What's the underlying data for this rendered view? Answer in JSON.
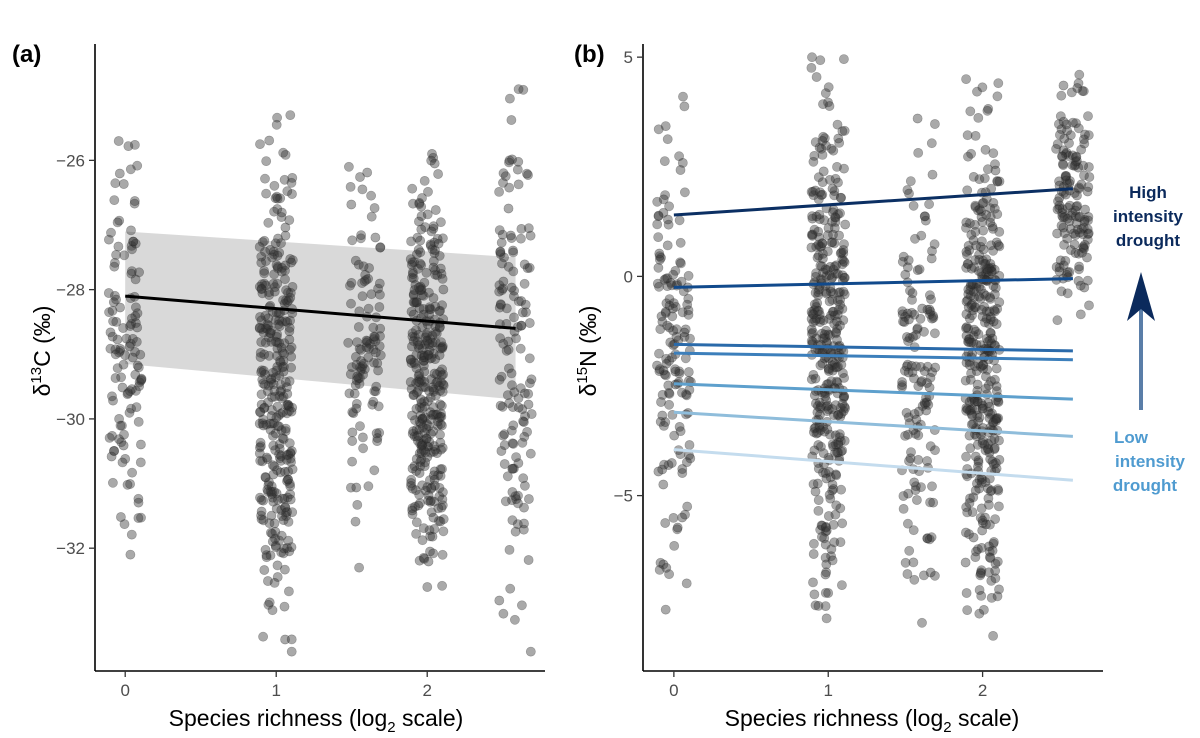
{
  "chart_data": [
    {
      "type": "scatter",
      "panel_label": "(a)",
      "xlabel_main": "Species richness (log",
      "xlabel_sub": "2",
      "xlabel_end": " scale)",
      "ylabel_delta": "δ",
      "ylabel_sup": "13",
      "ylabel_rest": "C (‰)",
      "xlim": [
        -0.2,
        2.78
      ],
      "ylim": [
        -33.9,
        -24.2
      ],
      "xticks": [
        0,
        1,
        2
      ],
      "xtick_labels": [
        "0",
        "1",
        "2"
      ],
      "yticks": [
        -32,
        -30,
        -28,
        -26
      ],
      "ytick_labels": [
        "−32",
        "−30",
        "−28",
        "−26"
      ],
      "grid": false,
      "clusters": [
        {
          "x": 0,
          "n": 120,
          "ymin": -32.1,
          "ymax": -25.7
        },
        {
          "x": 1,
          "n": 330,
          "ymin": -33.6,
          "ymax": -25.3
        },
        {
          "x": 1.585,
          "n": 110,
          "ymin": -32.3,
          "ymax": -26.1
        },
        {
          "x": 2,
          "n": 340,
          "ymin": -32.6,
          "ymax": -25.9
        },
        {
          "x": 2.585,
          "n": 140,
          "ymin": -33.6,
          "ymax": -24.9
        }
      ],
      "regression": {
        "x": [
          0,
          2.585
        ],
        "y": [
          -28.1,
          -28.6
        ],
        "color": "#000000"
      },
      "ribbon": {
        "x": [
          0,
          2.585
        ],
        "lower": [
          -29.15,
          -29.7
        ],
        "upper": [
          -27.1,
          -27.5
        ],
        "color": "#d9d9d9"
      }
    },
    {
      "type": "scatter",
      "panel_label": "(b)",
      "xlabel_main": "Species richness (log",
      "xlabel_sub": "2",
      "xlabel_end": " scale)",
      "ylabel_delta": "δ",
      "ylabel_sup": "15",
      "ylabel_rest": "N (‰)",
      "xlim": [
        -0.2,
        2.78
      ],
      "ylim": [
        -9.0,
        5.3
      ],
      "xticks": [
        0,
        1,
        2
      ],
      "xtick_labels": [
        "0",
        "1",
        "2"
      ],
      "yticks": [
        -5,
        0,
        5
      ],
      "ytick_labels": [
        "−5",
        "0",
        "5"
      ],
      "grid": false,
      "clusters": [
        {
          "x": 0,
          "n": 150,
          "ymin": -7.6,
          "ymax": 4.1
        },
        {
          "x": 1,
          "n": 380,
          "ymin": -7.8,
          "ymax": 5.0
        },
        {
          "x": 1.585,
          "n": 140,
          "ymin": -7.9,
          "ymax": 3.6
        },
        {
          "x": 2,
          "n": 380,
          "ymin": -8.2,
          "ymax": 4.5
        },
        {
          "x": 2.585,
          "n": 150,
          "ymin": -1.0,
          "ymax": 4.6
        }
      ],
      "series": [
        {
          "x": [
            0,
            2.585
          ],
          "y": [
            1.4,
            2.0
          ],
          "color": "#0b2f63"
        },
        {
          "x": [
            0,
            2.585
          ],
          "y": [
            -0.25,
            -0.05
          ],
          "color": "#114a8c"
        },
        {
          "x": [
            0,
            2.585
          ],
          "y": [
            -1.55,
            -1.7
          ],
          "color": "#2a6aaa"
        },
        {
          "x": [
            0,
            2.585
          ],
          "y": [
            -1.75,
            -1.9
          ],
          "color": "#3c7fbb"
        },
        {
          "x": [
            0,
            2.585
          ],
          "y": [
            -2.45,
            -2.8
          ],
          "color": "#5ea0cd"
        },
        {
          "x": [
            0,
            2.585
          ],
          "y": [
            -3.1,
            -3.65
          ],
          "color": "#8fbddb"
        },
        {
          "x": [
            0,
            2.585
          ],
          "y": [
            -3.95,
            -4.65
          ],
          "color": "#c4dcee"
        }
      ],
      "annotation": {
        "high": [
          "High",
          "intensity",
          "drought"
        ],
        "low": [
          "Low",
          "intensity",
          "drought"
        ],
        "high_color": "#0b2a5c",
        "low_color": "#4f9bd0",
        "arrow_color": "#5a7ea8"
      }
    }
  ]
}
